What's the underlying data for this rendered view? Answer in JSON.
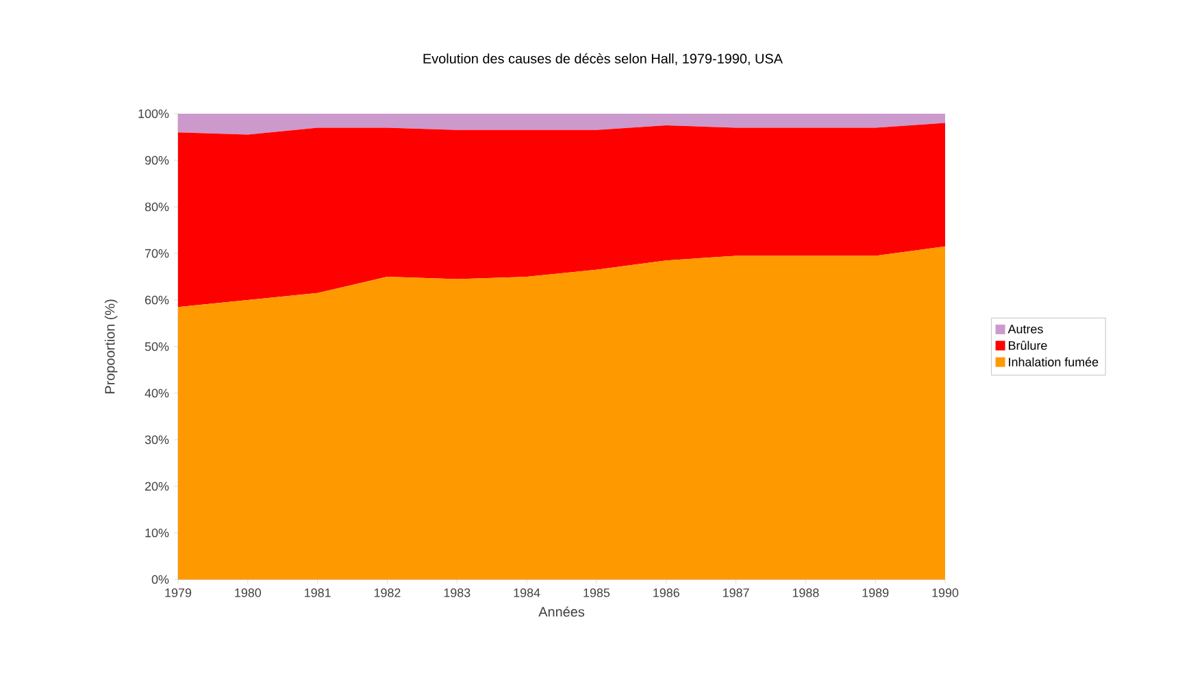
{
  "chart_data": {
    "type": "area",
    "title": "Evolution des causes de décès selon Hall, 1979-1990, USA",
    "xlabel": "Années",
    "ylabel": "Propoortion (%)",
    "x": [
      1979,
      1980,
      1981,
      1982,
      1983,
      1984,
      1985,
      1986,
      1987,
      1988,
      1989,
      1990
    ],
    "stacked": true,
    "series": [
      {
        "name": "Inhalation fumée",
        "color": "#ff9900",
        "values": [
          58.5,
          60,
          61.5,
          65,
          64.5,
          65,
          66.5,
          68.5,
          69.5,
          69.5,
          69.5,
          71.5
        ]
      },
      {
        "name": "Brûlure",
        "color": "#ff0000",
        "values": [
          37.5,
          35.5,
          35.5,
          32,
          32,
          31.5,
          30,
          29,
          27.5,
          27.5,
          27.5,
          26.5
        ]
      },
      {
        "name": "Autres",
        "color": "#cc99cc",
        "values": [
          4,
          4.5,
          3,
          3,
          3.5,
          3.5,
          3.5,
          2.5,
          3,
          3,
          3,
          2
        ]
      }
    ],
    "xlim": [
      1979,
      1990
    ],
    "xticks": [
      1979,
      1980,
      1981,
      1982,
      1983,
      1984,
      1985,
      1986,
      1987,
      1988,
      1989,
      1990
    ],
    "ylim": [
      0,
      100
    ],
    "yticks": [
      {
        "value": 0,
        "label": "0%"
      },
      {
        "value": 10,
        "label": "10%"
      },
      {
        "value": 20,
        "label": "20%"
      },
      {
        "value": 30,
        "label": "30%"
      },
      {
        "value": 40,
        "label": "40%"
      },
      {
        "value": 50,
        "label": "50%"
      },
      {
        "value": 60,
        "label": "60%"
      },
      {
        "value": 70,
        "label": "70%"
      },
      {
        "value": 80,
        "label": "80%"
      },
      {
        "value": 90,
        "label": "90%"
      },
      {
        "value": 100,
        "label": "100%"
      }
    ],
    "legend": "right"
  }
}
